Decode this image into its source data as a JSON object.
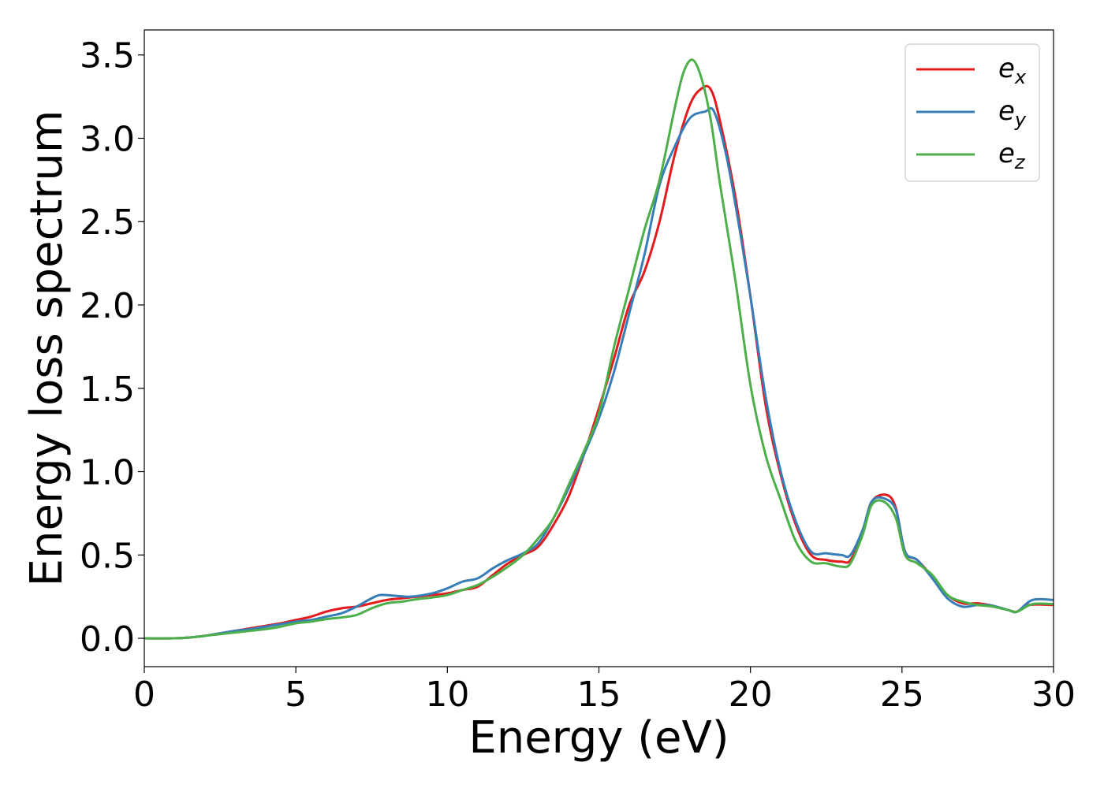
{
  "chart_data": {
    "type": "line",
    "title": "",
    "xlabel": "Energy (eV)",
    "ylabel": "Energy loss spectrum",
    "xlim": [
      0,
      30
    ],
    "ylim": [
      -0.17,
      3.65
    ],
    "xticks": [
      0,
      5,
      10,
      15,
      20,
      25,
      30
    ],
    "xtick_labels": [
      "0",
      "5",
      "10",
      "15",
      "20",
      "25",
      "30"
    ],
    "yticks": [
      0.0,
      0.5,
      1.0,
      1.5,
      2.0,
      2.5,
      3.0,
      3.5
    ],
    "ytick_labels": [
      "0.0",
      "0.5",
      "1.0",
      "1.5",
      "2.0",
      "2.5",
      "3.0",
      "3.5"
    ],
    "grid": false,
    "legend_position": "top-right",
    "series": [
      {
        "name_base": "e",
        "name_sub": "x",
        "color": "#e41a1c",
        "x": [
          0,
          1,
          1.5,
          2,
          2.5,
          3,
          3.5,
          4,
          4.5,
          5,
          5.5,
          6,
          6.5,
          7,
          7.5,
          8,
          8.5,
          9,
          9.5,
          10,
          10.5,
          11,
          11.5,
          12,
          12.5,
          13,
          13.5,
          14,
          14.5,
          15,
          15.5,
          16,
          16.5,
          17,
          17.5,
          18,
          18.4,
          18.7,
          19,
          19.5,
          20,
          20.5,
          21,
          21.5,
          22,
          22.5,
          23,
          23.3,
          23.7,
          24,
          24.5,
          24.8,
          25.1,
          25.5,
          26,
          26.5,
          27,
          27.5,
          28,
          28.5,
          28.8,
          29.2,
          30
        ],
        "y": [
          0,
          0,
          0.005,
          0.015,
          0.03,
          0.045,
          0.06,
          0.075,
          0.09,
          0.11,
          0.13,
          0.16,
          0.18,
          0.19,
          0.21,
          0.23,
          0.24,
          0.25,
          0.26,
          0.27,
          0.29,
          0.31,
          0.38,
          0.45,
          0.5,
          0.55,
          0.68,
          0.85,
          1.1,
          1.38,
          1.68,
          2.0,
          2.2,
          2.5,
          2.9,
          3.2,
          3.3,
          3.29,
          3.1,
          2.65,
          2.05,
          1.4,
          0.98,
          0.68,
          0.5,
          0.47,
          0.46,
          0.47,
          0.63,
          0.82,
          0.86,
          0.78,
          0.52,
          0.47,
          0.37,
          0.26,
          0.21,
          0.21,
          0.195,
          0.17,
          0.16,
          0.2,
          0.2
        ]
      },
      {
        "name_base": "e",
        "name_sub": "y",
        "color": "#377eb8",
        "x": [
          0,
          1,
          1.5,
          2,
          2.5,
          3,
          3.5,
          4,
          4.5,
          5,
          5.5,
          6,
          6.5,
          7,
          7.5,
          7.8,
          8.3,
          8.8,
          9.5,
          10,
          10.5,
          11,
          11.5,
          12,
          12.5,
          13,
          13.5,
          14,
          14.5,
          15,
          15.5,
          16,
          16.5,
          17,
          17.5,
          18,
          18.5,
          18.8,
          19.2,
          19.6,
          20,
          20.5,
          21,
          21.5,
          22,
          22.5,
          23,
          23.3,
          23.7,
          24,
          24.4,
          24.8,
          25.1,
          25.5,
          26,
          26.5,
          27,
          27.5,
          28,
          28.5,
          28.8,
          29.3,
          30
        ],
        "y": [
          0,
          0,
          0.005,
          0.015,
          0.03,
          0.045,
          0.055,
          0.07,
          0.085,
          0.1,
          0.11,
          0.13,
          0.15,
          0.19,
          0.24,
          0.26,
          0.255,
          0.25,
          0.27,
          0.3,
          0.34,
          0.36,
          0.42,
          0.47,
          0.51,
          0.57,
          0.72,
          0.9,
          1.1,
          1.32,
          1.6,
          1.95,
          2.3,
          2.72,
          2.95,
          3.12,
          3.16,
          3.16,
          2.9,
          2.5,
          2.05,
          1.45,
          1.0,
          0.7,
          0.52,
          0.51,
          0.5,
          0.5,
          0.65,
          0.82,
          0.84,
          0.77,
          0.52,
          0.47,
          0.36,
          0.24,
          0.19,
          0.2,
          0.195,
          0.17,
          0.16,
          0.23,
          0.23
        ]
      },
      {
        "name_base": "e",
        "name_sub": "z",
        "color": "#4daf4a",
        "x": [
          0,
          1,
          1.5,
          2,
          2.5,
          3,
          3.5,
          4,
          4.5,
          5,
          5.5,
          6,
          6.5,
          7,
          7.5,
          8,
          8.5,
          9,
          9.5,
          10,
          10.5,
          11,
          11.5,
          12,
          12.5,
          13,
          13.5,
          14,
          14.5,
          15,
          15.5,
          16,
          16.5,
          17,
          17.5,
          17.8,
          18.1,
          18.4,
          18.7,
          19,
          19.5,
          20,
          20.5,
          21,
          21.5,
          22,
          22.5,
          23,
          23.3,
          23.7,
          24,
          24.4,
          24.8,
          25.1,
          25.5,
          26,
          26.5,
          27,
          27.5,
          28,
          28.5,
          28.8,
          29.3,
          30
        ],
        "y": [
          0,
          0,
          0.005,
          0.015,
          0.025,
          0.035,
          0.045,
          0.055,
          0.07,
          0.09,
          0.1,
          0.115,
          0.125,
          0.14,
          0.18,
          0.21,
          0.22,
          0.235,
          0.245,
          0.26,
          0.29,
          0.32,
          0.37,
          0.43,
          0.5,
          0.6,
          0.72,
          0.92,
          1.12,
          1.35,
          1.75,
          2.1,
          2.45,
          2.75,
          3.18,
          3.4,
          3.47,
          3.35,
          3.1,
          2.72,
          2.15,
          1.52,
          1.1,
          0.83,
          0.58,
          0.46,
          0.45,
          0.43,
          0.45,
          0.62,
          0.8,
          0.82,
          0.72,
          0.5,
          0.45,
          0.38,
          0.26,
          0.22,
          0.2,
          0.19,
          0.17,
          0.16,
          0.205,
          0.205
        ]
      }
    ]
  }
}
